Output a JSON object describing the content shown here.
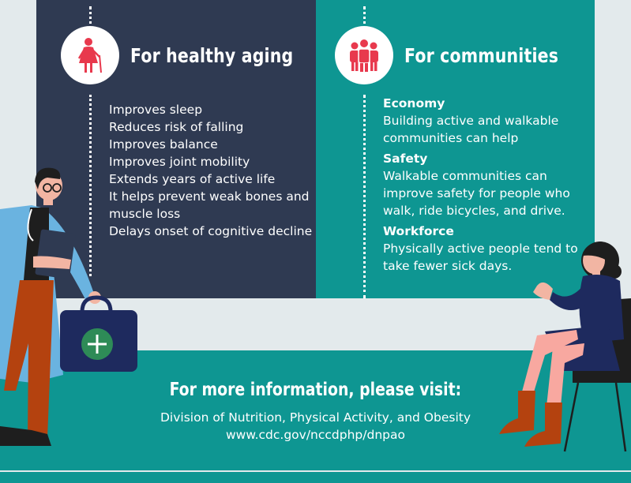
{
  "left_panel": {
    "title": "For healthy aging",
    "icon": "elderly-person-icon",
    "items": [
      "Improves sleep",
      "Reduces risk of falling",
      "Improves balance",
      "Improves joint mobility",
      "Extends years of active life",
      "It helps prevent weak bones and muscle loss",
      "Delays onset of cognitive decline"
    ]
  },
  "right_panel": {
    "title": "For communities",
    "icon": "group-of-people-icon",
    "sections": [
      {
        "heading": "Economy",
        "body": "Building active and walkable communities can help"
      },
      {
        "heading": "Safety",
        "body": "Walkable communities can improve safety for people who walk, ride bicycles, and drive."
      },
      {
        "heading": "Workforce",
        "body": "Physically active people tend to take fewer sick days."
      }
    ]
  },
  "footer": {
    "heading": "For more information, please visit:",
    "organization": "Division of Nutrition, Physical Activity, and Obesity",
    "url": "www.cdc.gov/nccdphp/dnpao"
  },
  "colors": {
    "navy": "#2f3a52",
    "teal": "#0e9692",
    "accent_red": "#e8394d",
    "background": "#e3eaec"
  }
}
